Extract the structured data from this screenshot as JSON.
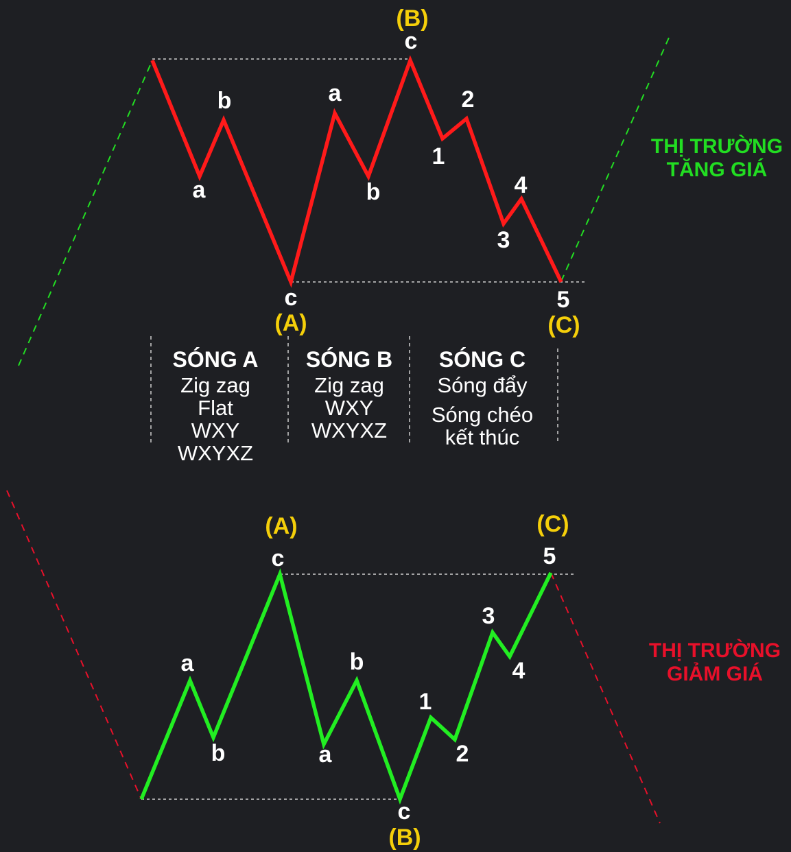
{
  "market_labels": {
    "bull": [
      "THỊ TRƯỜNG",
      "TĂNG GIÁ"
    ],
    "bear": [
      "THỊ TRƯỜNG",
      "GIẢM GIÁ"
    ]
  },
  "top_pattern": {
    "labels": {
      "a1": "a",
      "b1": "b",
      "c1": "c",
      "A": "(A)",
      "a2": "a",
      "b2": "b",
      "c2": "c",
      "B": "(B)",
      "w1": "1",
      "w2": "2",
      "w3": "3",
      "w4": "4",
      "w5": "5",
      "C": "(C)"
    }
  },
  "bottom_pattern": {
    "labels": {
      "a1": "a",
      "b1": "b",
      "c1": "c",
      "A": "(A)",
      "a2": "a",
      "b2": "b",
      "c2": "c",
      "B": "(B)",
      "w1": "1",
      "w2": "2",
      "w3": "3",
      "w4": "4",
      "w5": "5",
      "C": "(C)"
    }
  },
  "wave_table": [
    {
      "title": "SÓNG A",
      "items": [
        "Zig zag",
        "Flat",
        "WXY",
        "WXYXZ"
      ]
    },
    {
      "title": "SÓNG B",
      "items": [
        "Zig zag",
        "WXY",
        "WXYXZ"
      ]
    },
    {
      "title": "SÓNG C",
      "items": [
        "Sóng đẩy",
        "Sóng chéo",
        "kết thúc"
      ]
    }
  ],
  "colors": {
    "background": "#1e1f23",
    "bull": "#22dd22",
    "bear": "#e8102a",
    "wave_down": "#ff1a1a",
    "wave_up": "#22ee22",
    "highlight": "#f5cf0a"
  }
}
